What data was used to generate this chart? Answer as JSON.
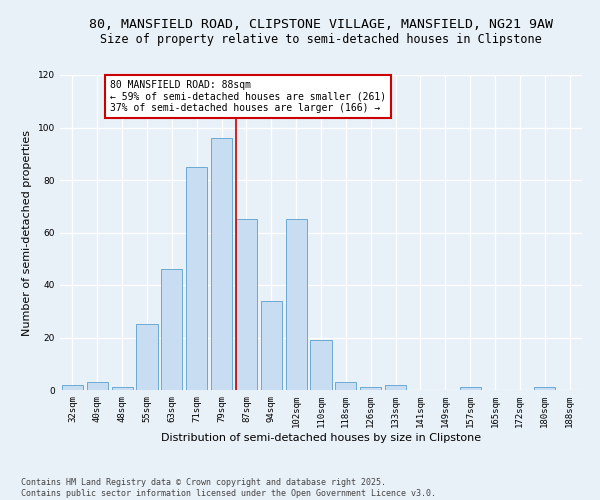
{
  "title1": "80, MANSFIELD ROAD, CLIPSTONE VILLAGE, MANSFIELD, NG21 9AW",
  "title2": "Size of property relative to semi-detached houses in Clipstone",
  "xlabel": "Distribution of semi-detached houses by size in Clipstone",
  "ylabel": "Number of semi-detached properties",
  "categories": [
    "32sqm",
    "40sqm",
    "48sqm",
    "55sqm",
    "63sqm",
    "71sqm",
    "79sqm",
    "87sqm",
    "94sqm",
    "102sqm",
    "110sqm",
    "118sqm",
    "126sqm",
    "133sqm",
    "141sqm",
    "149sqm",
    "157sqm",
    "165sqm",
    "172sqm",
    "180sqm",
    "188sqm"
  ],
  "values": [
    2,
    3,
    1,
    25,
    46,
    85,
    96,
    65,
    34,
    65,
    19,
    3,
    1,
    2,
    0,
    0,
    1,
    0,
    0,
    1,
    0
  ],
  "bar_color": "#c8ddf2",
  "bar_edge_color": "#6aaad4",
  "vline_index": 7,
  "annotation_title": "80 MANSFIELD ROAD: 88sqm",
  "annotation_line1": "← 59% of semi-detached houses are smaller (261)",
  "annotation_line2": "37% of semi-detached houses are larger (166) →",
  "annotation_box_color": "#ffffff",
  "annotation_box_edge": "#cc0000",
  "vline_color": "#cc0000",
  "ylim": [
    0,
    120
  ],
  "yticks": [
    0,
    20,
    40,
    60,
    80,
    100,
    120
  ],
  "footer1": "Contains HM Land Registry data © Crown copyright and database right 2025.",
  "footer2": "Contains public sector information licensed under the Open Government Licence v3.0.",
  "bg_color": "#e8f0f8",
  "plot_bg_color": "#e8f0f8",
  "grid_color": "#ffffff",
  "title1_fontsize": 9.5,
  "title2_fontsize": 8.5,
  "axis_label_fontsize": 8,
  "tick_fontsize": 6.5,
  "footer_fontsize": 6,
  "annot_fontsize": 7
}
